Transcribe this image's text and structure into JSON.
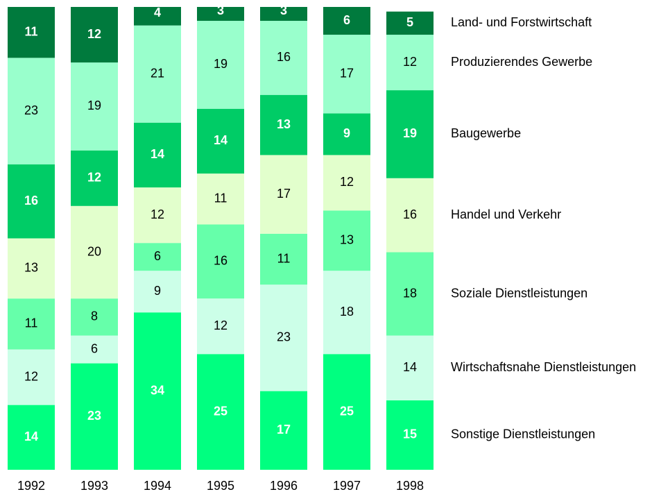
{
  "chart_data": {
    "type": "stacked-bar",
    "categories": [
      "1992",
      "1993",
      "1994",
      "1995",
      "1996",
      "1997",
      "1998"
    ],
    "ylim": [
      0,
      100
    ],
    "series": [
      {
        "name": "Sonstige Dienstleistungen",
        "color": "#00ff80",
        "label_color": "#ffffff",
        "values": [
          14,
          23,
          34,
          25,
          17,
          25,
          15
        ]
      },
      {
        "name": "Wirtschaftsnahe Dienstleistungen",
        "color": "#ccffe8",
        "label_color": "#000000",
        "values": [
          12,
          6,
          9,
          12,
          23,
          18,
          14
        ]
      },
      {
        "name": "Soziale Dienstleistungen",
        "color": "#66ffaa",
        "label_color": "#000000",
        "values": [
          11,
          8,
          6,
          16,
          11,
          13,
          18
        ]
      },
      {
        "name": "Handel und Verkehr",
        "color": "#e2ffcc",
        "label_color": "#000000",
        "values": [
          13,
          20,
          12,
          11,
          17,
          12,
          16
        ]
      },
      {
        "name": "Baugewerbe",
        "color": "#00cc66",
        "label_color": "#ffffff",
        "values": [
          16,
          12,
          14,
          14,
          13,
          9,
          19
        ]
      },
      {
        "name": "Produzierendes Gewerbe",
        "color": "#99ffcc",
        "label_color": "#000000",
        "values": [
          23,
          19,
          21,
          19,
          16,
          17,
          12
        ]
      },
      {
        "name": "Land- und Forstwirtschaft",
        "color": "#007a3d",
        "label_color": "#ffffff",
        "values": [
          11,
          12,
          4,
          3,
          3,
          6,
          5
        ]
      }
    ]
  }
}
